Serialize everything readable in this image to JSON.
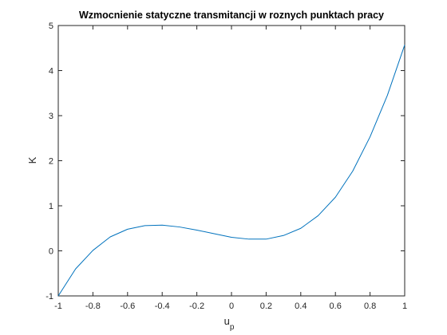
{
  "chart_data": {
    "type": "line",
    "title": "Wzmocnienie statyczne transmitancji w roznych punktach pracy",
    "xlabel": "u",
    "xlabel_subscript": "p",
    "ylabel": "K",
    "xlim": [
      -1,
      1
    ],
    "ylim": [
      -1,
      5
    ],
    "x_ticks": [
      -1,
      -0.8,
      -0.6,
      -0.4,
      -0.2,
      0,
      0.2,
      0.4,
      0.6,
      0.8,
      1
    ],
    "y_ticks": [
      -1,
      0,
      1,
      2,
      3,
      4,
      5
    ],
    "x_tick_labels": [
      "-1",
      "-0.8",
      "-0.6",
      "-0.4",
      "-0.2",
      "0",
      "0.2",
      "0.4",
      "0.6",
      "0.8",
      "1"
    ],
    "y_tick_labels": [
      "-1",
      "0",
      "1",
      "2",
      "3",
      "4",
      "5"
    ],
    "grid": false,
    "line_color": "#0072BD",
    "series": [
      {
        "x": [
          -1.0,
          -0.9,
          -0.8,
          -0.7,
          -0.6,
          -0.5,
          -0.4,
          -0.3,
          -0.2,
          -0.1,
          0.0,
          0.1,
          0.2,
          0.3,
          0.4,
          0.5,
          0.6,
          0.7,
          0.8,
          0.9,
          1.0
        ],
        "y": [
          -1.0,
          -0.4,
          0.01,
          0.31,
          0.48,
          0.56,
          0.57,
          0.53,
          0.46,
          0.38,
          0.3,
          0.26,
          0.26,
          0.34,
          0.5,
          0.78,
          1.19,
          1.77,
          2.53,
          3.45,
          4.57
        ]
      }
    ]
  }
}
